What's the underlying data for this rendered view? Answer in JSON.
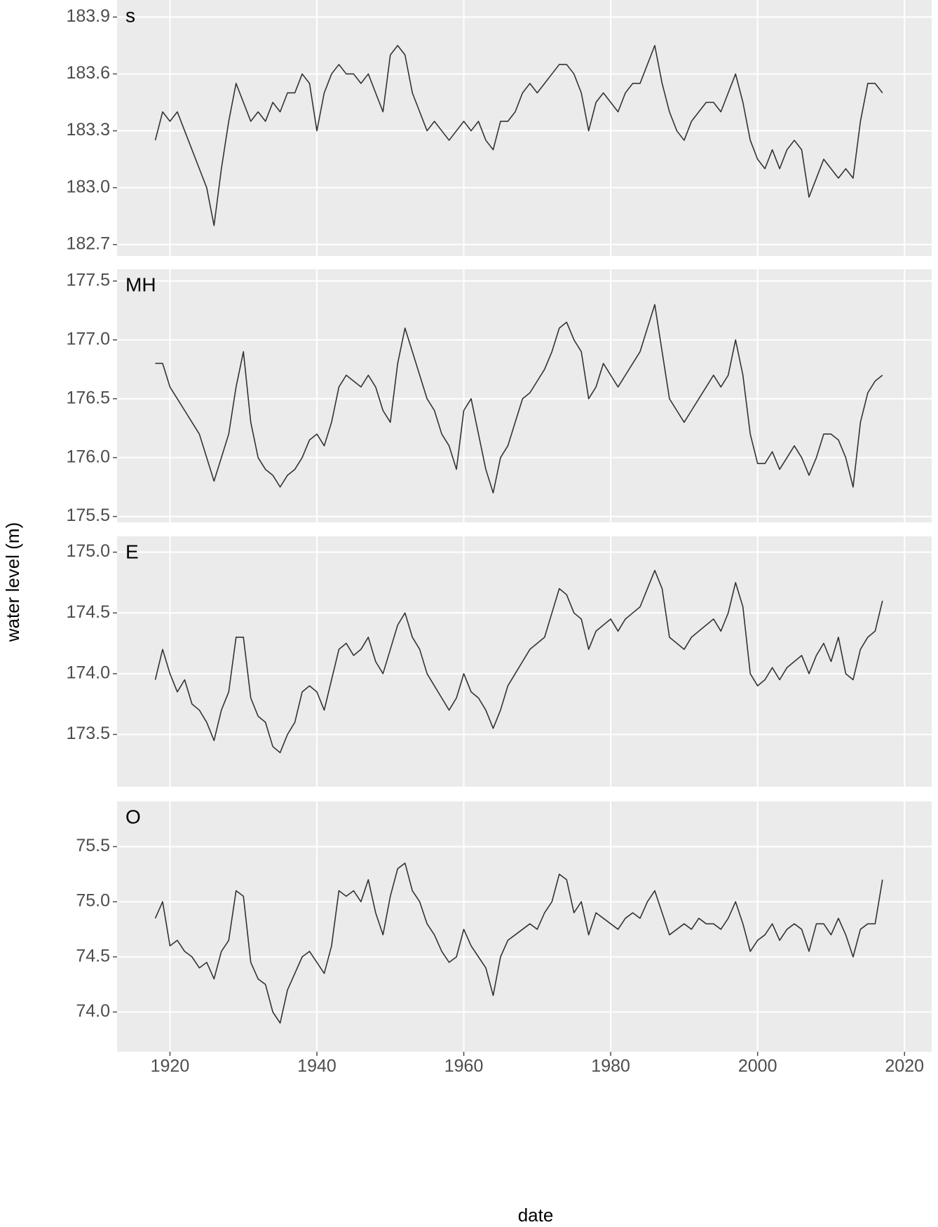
{
  "xlabel": "date",
  "ylabel": "water level (m)",
  "chart_data": [
    {
      "type": "line",
      "label": "s",
      "color": "#333333",
      "grid": true,
      "xlim": [
        1912.8,
        2023.7
      ],
      "xticks": [
        1920,
        1940,
        1960,
        1980,
        2000,
        2020
      ],
      "ylim": [
        182.64,
        183.99
      ],
      "yticks": [
        182.7,
        {
          "value": 183,
          "label": "183.0"
        },
        183.3,
        183.6,
        183.9
      ],
      "x": [
        1918,
        1919,
        1920,
        1921,
        1922,
        1923,
        1924,
        1925,
        1926,
        1927,
        1928,
        1929,
        1930,
        1931,
        1932,
        1933,
        1934,
        1935,
        1936,
        1937,
        1938,
        1939,
        1940,
        1941,
        1942,
        1943,
        1944,
        1945,
        1946,
        1947,
        1948,
        1949,
        1950,
        1951,
        1952,
        1953,
        1954,
        1955,
        1956,
        1957,
        1958,
        1959,
        1960,
        1961,
        1962,
        1963,
        1964,
        1965,
        1966,
        1967,
        1968,
        1969,
        1970,
        1971,
        1972,
        1973,
        1974,
        1975,
        1976,
        1977,
        1978,
        1979,
        1980,
        1981,
        1982,
        1983,
        1984,
        1985,
        1986,
        1987,
        1988,
        1989,
        1990,
        1991,
        1992,
        1993,
        1994,
        1995,
        1996,
        1997,
        1998,
        1999,
        2000,
        2001,
        2002,
        2003,
        2004,
        2005,
        2006,
        2007,
        2008,
        2009,
        2010,
        2011,
        2012,
        2013,
        2014,
        2015,
        2016,
        2017
      ],
      "values": [
        183.25,
        183.4,
        183.35,
        183.4,
        183.3,
        183.2,
        183.1,
        183.0,
        182.8,
        183.1,
        183.35,
        183.55,
        183.45,
        183.35,
        183.4,
        183.35,
        183.45,
        183.4,
        183.5,
        183.5,
        183.6,
        183.55,
        183.3,
        183.5,
        183.6,
        183.65,
        183.6,
        183.6,
        183.55,
        183.6,
        183.5,
        183.4,
        183.7,
        183.75,
        183.7,
        183.5,
        183.4,
        183.3,
        183.35,
        183.3,
        183.25,
        183.3,
        183.35,
        183.3,
        183.35,
        183.25,
        183.2,
        183.35,
        183.35,
        183.4,
        183.5,
        183.55,
        183.5,
        183.55,
        183.6,
        183.65,
        183.65,
        183.6,
        183.5,
        183.3,
        183.45,
        183.5,
        183.45,
        183.4,
        183.5,
        183.55,
        183.55,
        183.65,
        183.75,
        183.55,
        183.4,
        183.3,
        183.25,
        183.35,
        183.4,
        183.45,
        183.45,
        183.4,
        183.5,
        183.6,
        183.45,
        183.25,
        183.15,
        183.1,
        183.2,
        183.1,
        183.2,
        183.25,
        183.2,
        182.95,
        183.05,
        183.15,
        183.1,
        183.05,
        183.1,
        183.05,
        183.35,
        183.55,
        183.55,
        183.5
      ]
    },
    {
      "type": "line",
      "label": "MH",
      "color": "#333333",
      "grid": true,
      "xlim": [
        1912.8,
        2023.7
      ],
      "xticks": [
        1920,
        1940,
        1960,
        1980,
        2000,
        2020
      ],
      "ylim": [
        175.45,
        177.6
      ],
      "yticks": [
        175.5,
        {
          "value": 176,
          "label": "176.0"
        },
        176.5,
        {
          "value": 177,
          "label": "177.0"
        },
        177.5
      ],
      "x": [
        1918,
        1919,
        1920,
        1921,
        1922,
        1923,
        1924,
        1925,
        1926,
        1927,
        1928,
        1929,
        1930,
        1931,
        1932,
        1933,
        1934,
        1935,
        1936,
        1937,
        1938,
        1939,
        1940,
        1941,
        1942,
        1943,
        1944,
        1945,
        1946,
        1947,
        1948,
        1949,
        1950,
        1951,
        1952,
        1953,
        1954,
        1955,
        1956,
        1957,
        1958,
        1959,
        1960,
        1961,
        1962,
        1963,
        1964,
        1965,
        1966,
        1967,
        1968,
        1969,
        1970,
        1971,
        1972,
        1973,
        1974,
        1975,
        1976,
        1977,
        1978,
        1979,
        1980,
        1981,
        1982,
        1983,
        1984,
        1985,
        1986,
        1987,
        1988,
        1989,
        1990,
        1991,
        1992,
        1993,
        1994,
        1995,
        1996,
        1997,
        1998,
        1999,
        2000,
        2001,
        2002,
        2003,
        2004,
        2005,
        2006,
        2007,
        2008,
        2009,
        2010,
        2011,
        2012,
        2013,
        2014,
        2015,
        2016,
        2017
      ],
      "values": [
        176.8,
        176.8,
        176.6,
        176.5,
        176.4,
        176.3,
        176.2,
        176.0,
        175.8,
        176.0,
        176.2,
        176.6,
        176.9,
        176.3,
        176.0,
        175.9,
        175.85,
        175.75,
        175.85,
        175.9,
        176.0,
        176.15,
        176.2,
        176.1,
        176.3,
        176.6,
        176.7,
        176.65,
        176.6,
        176.7,
        176.6,
        176.4,
        176.3,
        176.8,
        177.1,
        176.9,
        176.7,
        176.5,
        176.4,
        176.2,
        176.1,
        175.9,
        176.4,
        176.5,
        176.2,
        175.9,
        175.7,
        176.0,
        176.1,
        176.3,
        176.5,
        176.55,
        176.65,
        176.75,
        176.9,
        177.1,
        177.15,
        177.0,
        176.9,
        176.5,
        176.6,
        176.8,
        176.7,
        176.6,
        176.7,
        176.8,
        176.9,
        177.1,
        177.3,
        176.9,
        176.5,
        176.4,
        176.3,
        176.4,
        176.5,
        176.6,
        176.7,
        176.6,
        176.7,
        177.0,
        176.7,
        176.2,
        175.95,
        175.95,
        176.05,
        175.9,
        176.0,
        176.1,
        176.0,
        175.85,
        176.0,
        176.2,
        176.2,
        176.15,
        176.0,
        175.75,
        176.3,
        176.55,
        176.65,
        176.7
      ]
    },
    {
      "type": "line",
      "label": "E",
      "color": "#333333",
      "grid": true,
      "xlim": [
        1912.8,
        2023.7
      ],
      "xticks": [
        1920,
        1940,
        1960,
        1980,
        2000,
        2020
      ],
      "ylim": [
        173.07,
        175.13
      ],
      "yticks": [
        173.5,
        {
          "value": 174,
          "label": "174.0"
        },
        174.5,
        {
          "value": 175,
          "label": "175.0"
        }
      ],
      "x": [
        1918,
        1919,
        1920,
        1921,
        1922,
        1923,
        1924,
        1925,
        1926,
        1927,
        1928,
        1929,
        1930,
        1931,
        1932,
        1933,
        1934,
        1935,
        1936,
        1937,
        1938,
        1939,
        1940,
        1941,
        1942,
        1943,
        1944,
        1945,
        1946,
        1947,
        1948,
        1949,
        1950,
        1951,
        1952,
        1953,
        1954,
        1955,
        1956,
        1957,
        1958,
        1959,
        1960,
        1961,
        1962,
        1963,
        1964,
        1965,
        1966,
        1967,
        1968,
        1969,
        1970,
        1971,
        1972,
        1973,
        1974,
        1975,
        1976,
        1977,
        1978,
        1979,
        1980,
        1981,
        1982,
        1983,
        1984,
        1985,
        1986,
        1987,
        1988,
        1989,
        1990,
        1991,
        1992,
        1993,
        1994,
        1995,
        1996,
        1997,
        1998,
        1999,
        2000,
        2001,
        2002,
        2003,
        2004,
        2005,
        2006,
        2007,
        2008,
        2009,
        2010,
        2011,
        2012,
        2013,
        2014,
        2015,
        2016,
        2017
      ],
      "values": [
        173.95,
        174.2,
        174.0,
        173.85,
        173.95,
        173.75,
        173.7,
        173.6,
        173.45,
        173.7,
        173.85,
        174.3,
        174.3,
        173.8,
        173.65,
        173.6,
        173.4,
        173.35,
        173.5,
        173.6,
        173.85,
        173.9,
        173.85,
        173.7,
        173.95,
        174.2,
        174.25,
        174.15,
        174.2,
        174.3,
        174.1,
        174.0,
        174.2,
        174.4,
        174.5,
        174.3,
        174.2,
        174.0,
        173.9,
        173.8,
        173.7,
        173.8,
        174.0,
        173.85,
        173.8,
        173.7,
        173.55,
        173.7,
        173.9,
        174.0,
        174.1,
        174.2,
        174.25,
        174.3,
        174.5,
        174.7,
        174.65,
        174.5,
        174.45,
        174.2,
        174.35,
        174.4,
        174.45,
        174.35,
        174.45,
        174.5,
        174.55,
        174.7,
        174.85,
        174.7,
        174.3,
        174.25,
        174.2,
        174.3,
        174.35,
        174.4,
        174.45,
        174.35,
        174.5,
        174.75,
        174.55,
        174.0,
        173.9,
        173.95,
        174.05,
        173.95,
        174.05,
        174.1,
        174.15,
        174.0,
        174.15,
        174.25,
        174.1,
        174.3,
        174.0,
        173.95,
        174.2,
        174.3,
        174.35,
        174.6
      ]
    },
    {
      "type": "line",
      "label": "O",
      "color": "#333333",
      "grid": true,
      "xlim": [
        1912.8,
        2023.7
      ],
      "xticks": [
        1920,
        1940,
        1960,
        1980,
        2000,
        2020
      ],
      "ylim": [
        73.64,
        75.91
      ],
      "yticks": [
        {
          "value": 74,
          "label": "74.0"
        },
        74.5,
        {
          "value": 75,
          "label": "75.0"
        },
        75.5
      ],
      "x": [
        1918,
        1919,
        1920,
        1921,
        1922,
        1923,
        1924,
        1925,
        1926,
        1927,
        1928,
        1929,
        1930,
        1931,
        1932,
        1933,
        1934,
        1935,
        1936,
        1937,
        1938,
        1939,
        1940,
        1941,
        1942,
        1943,
        1944,
        1945,
        1946,
        1947,
        1948,
        1949,
        1950,
        1951,
        1952,
        1953,
        1954,
        1955,
        1956,
        1957,
        1958,
        1959,
        1960,
        1961,
        1962,
        1963,
        1964,
        1965,
        1966,
        1967,
        1968,
        1969,
        1970,
        1971,
        1972,
        1973,
        1974,
        1975,
        1976,
        1977,
        1978,
        1979,
        1980,
        1981,
        1982,
        1983,
        1984,
        1985,
        1986,
        1987,
        1988,
        1989,
        1990,
        1991,
        1992,
        1993,
        1994,
        1995,
        1996,
        1997,
        1998,
        1999,
        2000,
        2001,
        2002,
        2003,
        2004,
        2005,
        2006,
        2007,
        2008,
        2009,
        2010,
        2011,
        2012,
        2013,
        2014,
        2015,
        2016,
        2017
      ],
      "values": [
        74.85,
        75.0,
        74.6,
        74.65,
        74.55,
        74.5,
        74.4,
        74.45,
        74.3,
        74.55,
        74.65,
        75.1,
        75.05,
        74.45,
        74.3,
        74.25,
        74.0,
        73.9,
        74.2,
        74.35,
        74.5,
        74.55,
        74.45,
        74.35,
        74.6,
        75.1,
        75.05,
        75.1,
        75.0,
        75.2,
        74.9,
        74.7,
        75.05,
        75.3,
        75.35,
        75.1,
        75.0,
        74.8,
        74.7,
        74.55,
        74.45,
        74.5,
        74.75,
        74.6,
        74.5,
        74.4,
        74.15,
        74.5,
        74.65,
        74.7,
        74.75,
        74.8,
        74.75,
        74.9,
        75.0,
        75.25,
        75.2,
        74.9,
        75.0,
        74.7,
        74.9,
        74.85,
        74.8,
        74.75,
        74.85,
        74.9,
        74.85,
        75.0,
        75.1,
        74.9,
        74.7,
        74.75,
        74.8,
        74.75,
        74.85,
        74.8,
        74.8,
        74.75,
        74.85,
        75.0,
        74.8,
        74.55,
        74.65,
        74.7,
        74.8,
        74.65,
        74.75,
        74.8,
        74.75,
        74.55,
        74.8,
        74.8,
        74.7,
        74.85,
        74.7,
        74.5,
        74.75,
        74.8,
        74.8,
        75.2
      ]
    }
  ]
}
